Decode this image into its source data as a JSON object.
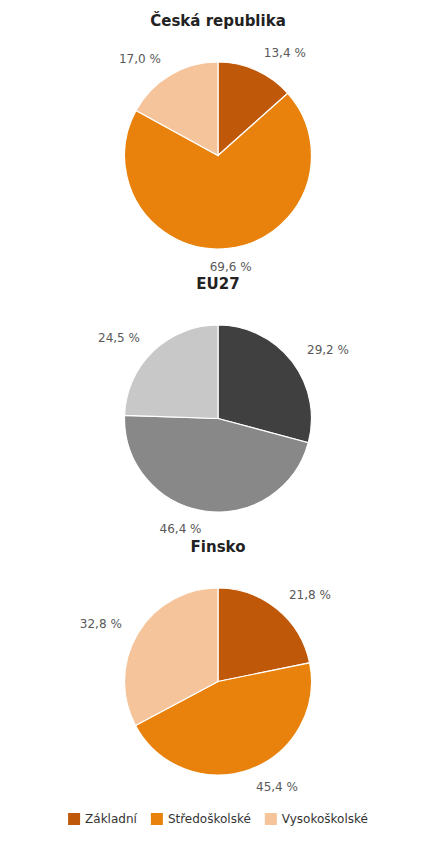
{
  "chart_data": [
    {
      "type": "pie",
      "title": "Česká republika",
      "categories": [
        "Základní",
        "Středoškolské",
        "Vysokoškolské"
      ],
      "values": [
        13.4,
        69.6,
        17.0
      ],
      "value_labels": [
        "13,4 %",
        "69,6 %",
        "17,0 %"
      ],
      "colors": [
        "#C0580A",
        "#E8820C",
        "#F5C49A"
      ],
      "data_labels": true,
      "legend": "bottom"
    },
    {
      "type": "pie",
      "title": "EU27",
      "values": [
        29.2,
        46.4,
        24.5
      ],
      "value_labels": [
        "29,2 %",
        "46,4 %",
        "24,5 %"
      ],
      "colors": [
        "#404040",
        "#888888",
        "#C8C8C8"
      ],
      "data_labels": true
    },
    {
      "type": "pie",
      "title": "Finsko",
      "values": [
        21.8,
        45.4,
        32.8
      ],
      "value_labels": [
        "21,8 %",
        "45,4 %",
        "32,8 %"
      ],
      "colors": [
        "#C0580A",
        "#E8820C",
        "#F5C49A"
      ],
      "data_labels": true
    }
  ]
}
